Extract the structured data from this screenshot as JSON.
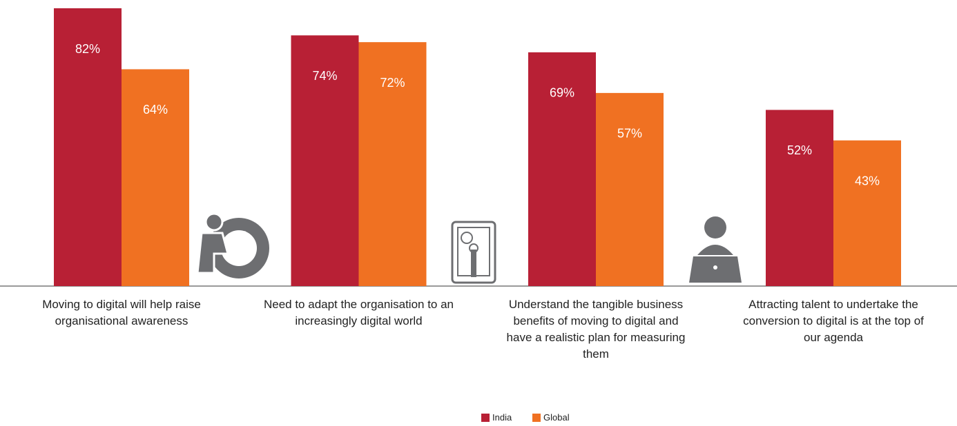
{
  "chart_data": {
    "type": "bar",
    "categories": [
      "Moving to digital will help raise organisational awareness",
      "Need to adapt the organisation to an increasingly digital world",
      "Understand the tangible business benefits of moving to digital and have a realistic plan for measuring them",
      "Attracting talent to undertake the conversion to digital is at the top of our agenda"
    ],
    "series": [
      {
        "name": "India",
        "color": "#b82035",
        "values": [
          82,
          74,
          69,
          52
        ],
        "value_labels": [
          "82%",
          "74%",
          "69%",
          "52%"
        ]
      },
      {
        "name": "Global",
        "color": "#f07122",
        "values": [
          64,
          72,
          57,
          43
        ],
        "value_labels": [
          "64%",
          "72%",
          "57%",
          "43%"
        ]
      }
    ]
  }
}
